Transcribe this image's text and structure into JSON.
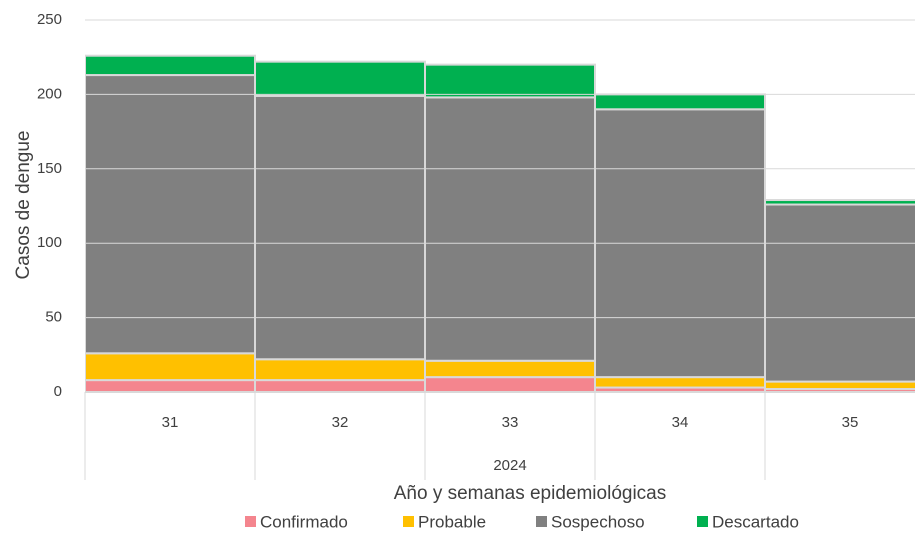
{
  "chart_data": {
    "type": "stacked_bar",
    "y_label": "Casos de dengue",
    "x_label": "Año y semanas epidemiológicas",
    "group_label": "2024",
    "categories": [
      "31",
      "32",
      "33",
      "34",
      "35"
    ],
    "series": [
      {
        "name": "Confirmado",
        "color": "#f4858e",
        "values": [
          8,
          8,
          10,
          3,
          2
        ]
      },
      {
        "name": "Probable",
        "color": "#ffc000",
        "values": [
          18,
          14,
          11,
          7,
          5
        ]
      },
      {
        "name": "Sospechoso",
        "color": "#808080",
        "values": [
          187,
          177,
          177,
          180,
          119
        ]
      },
      {
        "name": "Descartado",
        "color": "#00b050",
        "values": [
          13,
          23,
          22,
          10,
          3
        ]
      }
    ],
    "ylim": [
      0,
      250
    ],
    "yticks": [
      0,
      50,
      100,
      150,
      200,
      250
    ],
    "grid": true
  }
}
